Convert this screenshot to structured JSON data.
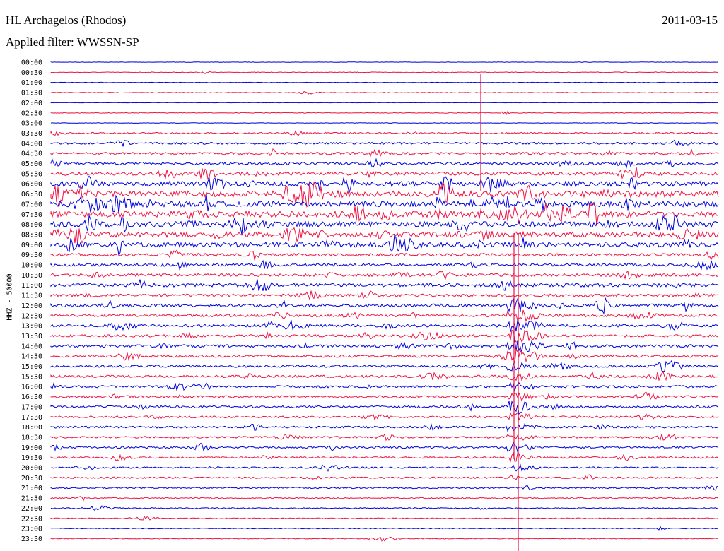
{
  "header": {
    "station": "HL Archagelos (Rhodos)",
    "date": "2011-03-15",
    "filter": "Applied filter: WWSSN-SP"
  },
  "colors": {
    "odd_trace": "#0000dd",
    "even_trace": "#ee1144",
    "text": "#000000"
  },
  "chart_data": {
    "type": "line",
    "title": "HL Archagelos (Rhodos)",
    "ylabel": "HHZ - 50000",
    "xlabel": "",
    "rows": [
      "00:00",
      "00:30",
      "01:00",
      "01:30",
      "02:00",
      "02:30",
      "03:00",
      "03:30",
      "04:00",
      "04:30",
      "05:00",
      "05:30",
      "06:00",
      "06:30",
      "07:00",
      "07:30",
      "08:00",
      "08:30",
      "09:00",
      "09:30",
      "10:00",
      "10:30",
      "11:00",
      "11:30",
      "12:00",
      "12:30",
      "13:00",
      "13:30",
      "14:00",
      "14:30",
      "15:00",
      "15:30",
      "16:00",
      "16:30",
      "17:00",
      "17:30",
      "18:00",
      "18:30",
      "19:00",
      "19:30",
      "20:00",
      "20:30",
      "21:00",
      "21:30",
      "22:00",
      "22:30",
      "23:00",
      "23:30"
    ],
    "minutes_per_row": 30,
    "series_colors": [
      "#0000dd",
      "#ee1144"
    ],
    "relative_noise_per_row": [
      0.2,
      0.4,
      0.3,
      0.4,
      0.2,
      0.4,
      0.3,
      1,
      1.3,
      1.5,
      1.8,
      2.2,
      3.2,
      3.8,
      3.6,
      3.8,
      3.6,
      3.4,
      3.2,
      1.9,
      1.8,
      1.9,
      2.2,
      1.7,
      2,
      1.7,
      1.7,
      1.6,
      1.8,
      1.6,
      1.5,
      1.6,
      1.5,
      1.4,
      1.5,
      1.3,
      1.3,
      1.2,
      1.3,
      1.1,
      1,
      1,
      0.9,
      0.8,
      0.7,
      0.6,
      0.5,
      0.5
    ],
    "events": [
      {
        "row": "14:30",
        "minute": 22,
        "type": "large earthquake with long coda"
      },
      {
        "row": "08:30",
        "minute": 2,
        "type": "noise burst"
      }
    ]
  }
}
